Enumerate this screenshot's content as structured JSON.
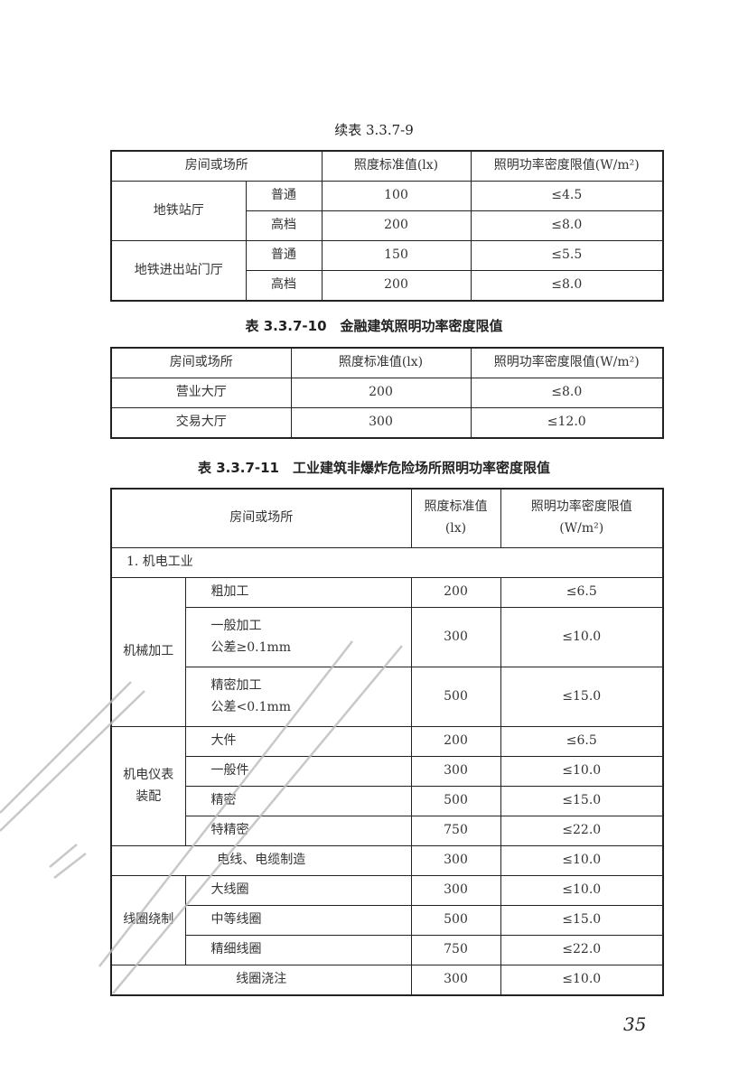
{
  "table1": {
    "caption": "续表 3.3.7-9",
    "headers": [
      "房间或场所",
      "照度标准值(lx)",
      "照明功率密度限值(W/m²)"
    ],
    "groups": [
      {
        "name": "地铁站厅",
        "rows": [
          [
            "普通",
            "100",
            "≤4.5"
          ],
          [
            "高档",
            "200",
            "≤8.0"
          ]
        ]
      },
      {
        "name": "地铁进出站门厅",
        "rows": [
          [
            "普通",
            "150",
            "≤5.5"
          ],
          [
            "高档",
            "200",
            "≤8.0"
          ]
        ]
      }
    ]
  },
  "table2": {
    "caption": "表 3.3.7-10　金融建筑照明功率密度限值",
    "headers": [
      "房间或场所",
      "照度标准值(lx)",
      "照明功率密度限值(W/m²)"
    ],
    "rows": [
      [
        "营业大厅",
        "200",
        "≤8.0"
      ],
      [
        "交易大厅",
        "300",
        "≤12.0"
      ]
    ]
  },
  "table3": {
    "caption": "表 3.3.7-11　工业建筑非爆炸危险场所照明功率密度限值",
    "headers": [
      "房间或场所",
      "照度标准值",
      "(lx)",
      "照明功率密度限值",
      "(W/m²)"
    ],
    "section": "1. 机电工业",
    "g1": {
      "name": "机械加工",
      "rows": [
        [
          "粗加工",
          "",
          "200",
          "≤6.5"
        ],
        [
          "一般加工",
          "公差≥0.1mm",
          "300",
          "≤10.0"
        ],
        [
          "精密加工",
          "公差<0.1mm",
          "500",
          "≤15.0"
        ]
      ]
    },
    "g2": {
      "name": "机电仪表装配",
      "rows": [
        [
          "大件",
          "200",
          "≤6.5"
        ],
        [
          "一般件",
          "300",
          "≤10.0"
        ],
        [
          "精密",
          "500",
          "≤15.0"
        ],
        [
          "特精密",
          "750",
          "≤22.0"
        ]
      ]
    },
    "r1": [
      "电线、电缆制造",
      "300",
      "≤10.0"
    ],
    "g3": {
      "name": "线圈绕制",
      "rows": [
        [
          "大线圈",
          "300",
          "≤10.0"
        ],
        [
          "中等线圈",
          "500",
          "≤15.0"
        ],
        [
          "精细线圈",
          "750",
          "≤22.0"
        ]
      ]
    },
    "r2": [
      "线圈浇注",
      "300",
      "≤10.0"
    ]
  },
  "page_number": "35"
}
